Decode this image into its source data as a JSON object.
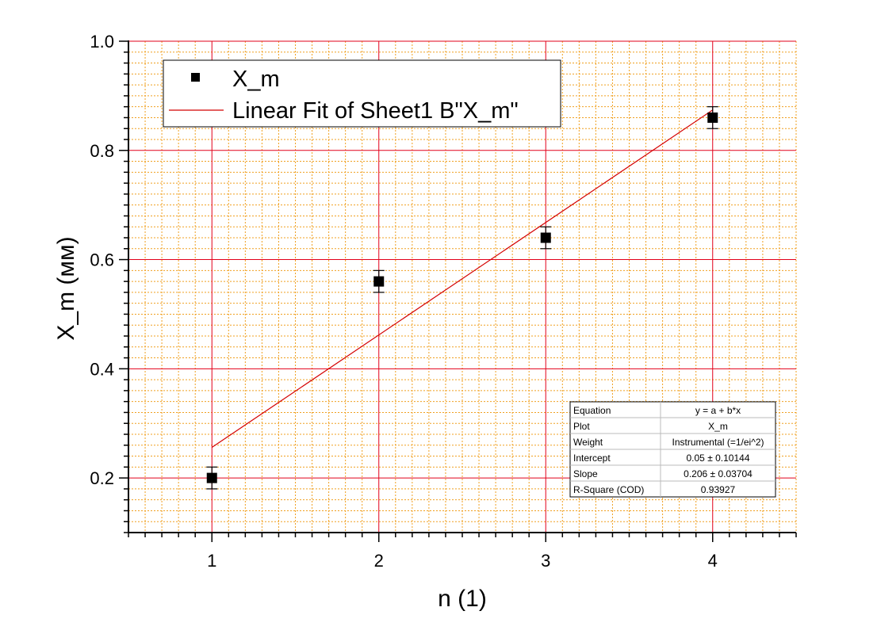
{
  "chart_data": {
    "type": "scatter",
    "xlabel": "n (1)",
    "ylabel": "X_m (мм)",
    "xlim": [
      0.5,
      4.5
    ],
    "ylim": [
      0.1,
      1.0
    ],
    "x_ticks": [
      "1",
      "2",
      "3",
      "4"
    ],
    "y_ticks": [
      "0.2",
      "0.4",
      "0.6",
      "0.8",
      "1.0"
    ],
    "grid": true,
    "legend_position": "top-left",
    "series": [
      {
        "name": "X_m",
        "kind": "scatter",
        "marker": "square",
        "color": "#000000",
        "x": [
          1,
          2,
          3,
          4
        ],
        "y": [
          0.2,
          0.56,
          0.64,
          0.86
        ],
        "yerr": [
          0.02,
          0.02,
          0.02,
          0.02
        ]
      },
      {
        "name": "Linear Fit of Sheet1 B\"X_m\"",
        "kind": "line",
        "color": "#d40000",
        "x": [
          1,
          4
        ],
        "y": [
          0.256,
          0.874
        ]
      }
    ],
    "major_grid_color": "#e2001a",
    "minor_grid_color": "#f0a020",
    "fit_table": {
      "rows": [
        {
          "label": "Equation",
          "value": "y = a + b*x"
        },
        {
          "label": "Plot",
          "value": "X_m"
        },
        {
          "label": "Weight",
          "value": "Instrumental (=1/ei^2)"
        },
        {
          "label": "Intercept",
          "value": "0.05 ± 0.10144"
        },
        {
          "label": "Slope",
          "value": "0.206 ± 0.03704"
        },
        {
          "label": "R-Square (COD)",
          "value": "0.93927"
        }
      ]
    }
  }
}
